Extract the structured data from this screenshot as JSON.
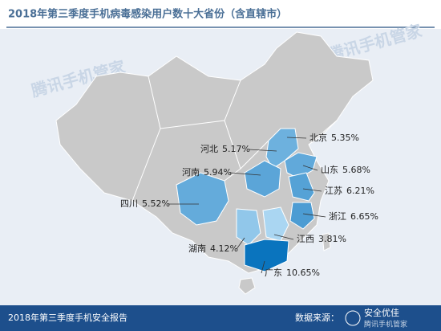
{
  "header": {
    "title": "2018年第三季度手机病毒感染用户数十大省份（含直辖市）"
  },
  "map": {
    "regions": [
      {
        "name": "北京",
        "value": 5.35,
        "label": "5.35%"
      },
      {
        "name": "河北",
        "value": 5.17,
        "label": "5.17%"
      },
      {
        "name": "河南",
        "value": 5.94,
        "label": "5.94%"
      },
      {
        "name": "山东",
        "value": 5.68,
        "label": "5.68%"
      },
      {
        "name": "江苏",
        "value": 6.21,
        "label": "6.21%"
      },
      {
        "name": "四川",
        "value": 5.52,
        "label": "5.52%"
      },
      {
        "name": "浙江",
        "value": 6.65,
        "label": "6.65%"
      },
      {
        "name": "湖南",
        "value": 4.12,
        "label": "4.12%"
      },
      {
        "name": "江西",
        "value": 3.81,
        "label": "3.81%"
      },
      {
        "name": "广东",
        "value": 10.65,
        "label": "10.65%"
      }
    ]
  },
  "watermark": "腾讯手机管家",
  "footer": {
    "report": "2018年第三季度手机安全报告",
    "source": "数据来源：",
    "badge": "安全优佳",
    "brand": "腾讯手机管家"
  }
}
